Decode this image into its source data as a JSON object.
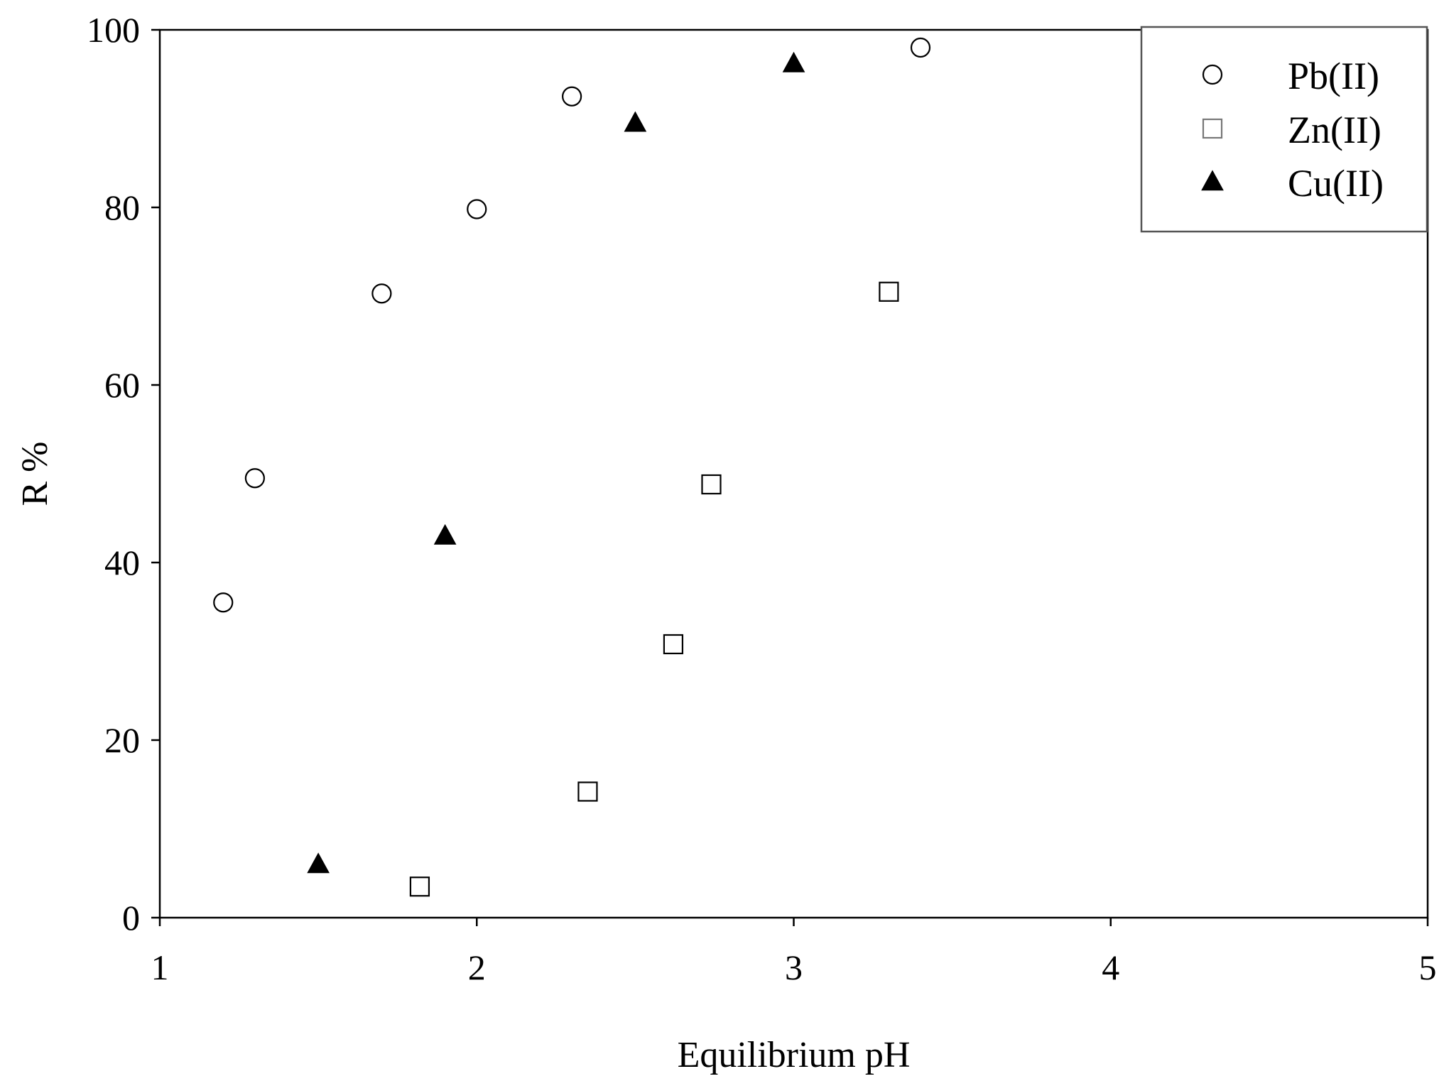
{
  "chart_data": {
    "type": "scatter",
    "title": "",
    "xlabel": "Equilibrium pH",
    "ylabel": "R %",
    "xlim": [
      1,
      5
    ],
    "ylim": [
      0,
      100
    ],
    "x_ticks": [
      1,
      2,
      3,
      4,
      5
    ],
    "y_ticks": [
      0,
      20,
      40,
      60,
      80,
      100
    ],
    "grid": false,
    "legend_position": "top-right",
    "series": [
      {
        "name": "Pb(II)",
        "marker": "circle-open",
        "color": "#000000",
        "points": [
          [
            1.2,
            35.5
          ],
          [
            1.3,
            49.5
          ],
          [
            1.7,
            70.3
          ],
          [
            2.0,
            79.8
          ],
          [
            2.3,
            92.5
          ],
          [
            3.4,
            98.0
          ]
        ]
      },
      {
        "name": "Zn(II)",
        "marker": "square-open",
        "color": "#000000",
        "points": [
          [
            1.82,
            3.5
          ],
          [
            2.35,
            14.2
          ],
          [
            2.62,
            30.8
          ],
          [
            2.74,
            48.8
          ],
          [
            3.3,
            70.5
          ]
        ]
      },
      {
        "name": "Cu(II)",
        "marker": "triangle-filled",
        "color": "#000000",
        "points": [
          [
            1.5,
            6.0
          ],
          [
            1.9,
            43.0
          ],
          [
            2.5,
            89.5
          ],
          [
            3.0,
            96.2
          ]
        ]
      }
    ]
  }
}
